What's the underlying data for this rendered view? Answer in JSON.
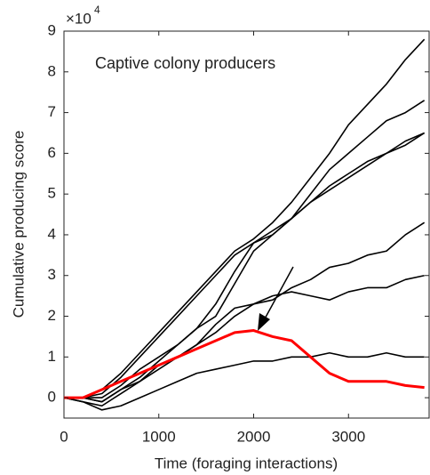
{
  "chart_data": {
    "type": "line",
    "title": "Captive colony producers",
    "x_label": "Time (foraging interactions)",
    "y_label": "Cumulative producing score",
    "y_multiplier": "×10",
    "y_multiplier_exponent": "4",
    "x": [
      0,
      200,
      400,
      600,
      800,
      1000,
      1200,
      1400,
      1600,
      1800,
      2000,
      2200,
      2400,
      2600,
      2800,
      3000,
      3200,
      3400,
      3600,
      3800
    ],
    "series": [
      {
        "color": "#000000",
        "values": [
          0,
          0,
          0.2,
          0.6,
          1.1,
          1.6,
          2.1,
          2.6,
          3.1,
          3.6,
          3.9,
          4.3,
          4.8,
          5.4,
          6.0,
          6.7,
          7.2,
          7.7,
          8.3,
          8.8
        ]
      },
      {
        "color": "#000000",
        "values": [
          0,
          0,
          0.1,
          0.5,
          1.0,
          1.5,
          2.0,
          2.5,
          3.0,
          3.5,
          3.8,
          4.0,
          4.4,
          5.0,
          5.6,
          6.0,
          6.4,
          6.8,
          7.0,
          7.3
        ]
      },
      {
        "color": "#000000",
        "values": [
          0,
          0,
          0,
          0.3,
          0.7,
          1.0,
          1.3,
          1.7,
          2.0,
          2.8,
          3.6,
          4.0,
          4.4,
          4.8,
          5.2,
          5.5,
          5.8,
          6.0,
          6.3,
          6.5
        ]
      },
      {
        "color": "#000000",
        "values": [
          0,
          0,
          -0.1,
          0.2,
          0.5,
          0.9,
          1.3,
          1.7,
          2.3,
          3.1,
          3.8,
          4.1,
          4.4,
          4.8,
          5.1,
          5.4,
          5.7,
          6.0,
          6.2,
          6.5
        ]
      },
      {
        "color": "#000000",
        "values": [
          0,
          0,
          -0.1,
          0.2,
          0.4,
          0.7,
          1.0,
          1.3,
          1.6,
          2.0,
          2.3,
          2.4,
          2.7,
          2.9,
          3.2,
          3.3,
          3.5,
          3.6,
          4.0,
          4.3
        ]
      },
      {
        "color": "#000000",
        "values": [
          0,
          -0.1,
          -0.2,
          0.1,
          0.4,
          0.8,
          1.0,
          1.3,
          1.8,
          2.2,
          2.3,
          2.5,
          2.6,
          2.5,
          2.4,
          2.6,
          2.7,
          2.7,
          2.9,
          3.0
        ]
      },
      {
        "color": "#000000",
        "values": [
          0,
          -0.1,
          -0.3,
          -0.2,
          0,
          0.2,
          0.4,
          0.6,
          0.7,
          0.8,
          0.9,
          0.9,
          1.0,
          1.0,
          1.1,
          1.0,
          1.0,
          1.1,
          1.0,
          1.0
        ]
      },
      {
        "color": "#ff0000",
        "values": [
          0,
          0,
          0.2,
          0.4,
          0.6,
          0.8,
          1.0,
          1.2,
          1.4,
          1.6,
          1.65,
          1.5,
          1.4,
          1.0,
          0.6,
          0.4,
          0.4,
          0.4,
          0.3,
          0.25
        ]
      }
    ],
    "xlim": [
      0,
      3850
    ],
    "xticks": [
      0,
      1000,
      2000,
      3000
    ],
    "ylim": [
      -0.5,
      9
    ],
    "yticks": [
      0,
      1,
      2,
      3,
      4,
      5,
      6,
      7,
      8,
      9
    ],
    "grid": false
  }
}
